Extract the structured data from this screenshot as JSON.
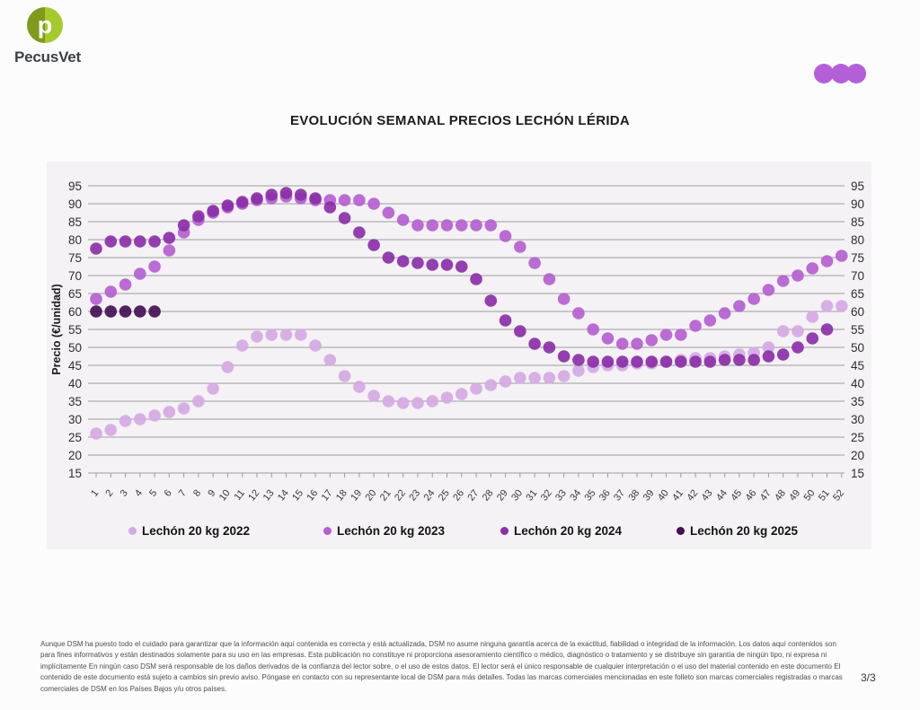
{
  "logo": {
    "brand": "PecusVet",
    "circle_dark_green": "#7f9a1d",
    "circle_light_green": "#a4ca2e"
  },
  "header": {
    "dots_color": "#b45fd8"
  },
  "title": "EVOLUCIÓN SEMANAL PRECIOS LECHÓN LÉRIDA",
  "chart_data": {
    "type": "scatter",
    "title": "EVOLUCIÓN SEMANAL PRECIOS LECHÓN LÉRIDA",
    "xlabel": "",
    "ylabel": "Precio (€/unidad)",
    "ylim": [
      15,
      95
    ],
    "y_ticks": [
      95,
      90,
      85,
      80,
      75,
      70,
      65,
      60,
      55,
      50,
      45,
      40,
      35,
      30,
      25,
      20,
      15
    ],
    "grid": true,
    "legend_position": "bottom",
    "x": [
      1,
      2,
      3,
      4,
      5,
      6,
      7,
      8,
      9,
      10,
      11,
      12,
      13,
      14,
      15,
      16,
      17,
      18,
      19,
      20,
      21,
      22,
      23,
      24,
      25,
      26,
      27,
      28,
      29,
      30,
      31,
      32,
      33,
      34,
      35,
      36,
      37,
      38,
      39,
      40,
      41,
      42,
      43,
      44,
      45,
      46,
      47,
      48,
      49,
      50,
      51,
      52
    ],
    "series": [
      {
        "name": "Lechón 20 kg 2022",
        "color": "#d4a9e3",
        "values": [
          26,
          27,
          29.5,
          30,
          31,
          32,
          33,
          35,
          38.5,
          44.5,
          50.5,
          53,
          53.5,
          53.5,
          53.5,
          50.5,
          46.5,
          42,
          39,
          36.5,
          35,
          34.5,
          34.5,
          35,
          36,
          37,
          38.5,
          39.5,
          40.5,
          41.5,
          41.5,
          41.5,
          42,
          43.5,
          44.5,
          45,
          45,
          45.5,
          45.5,
          46,
          46.5,
          47,
          47,
          47.5,
          48,
          48.5,
          50,
          54.5,
          54.5,
          58.5,
          61.5,
          61.5
        ]
      },
      {
        "name": "Lechón 20 kg 2023",
        "color": "#b55fd0",
        "values": [
          63.5,
          65.5,
          67.5,
          70.5,
          72.5,
          77,
          82,
          85.5,
          87.5,
          89,
          90,
          91,
          91.5,
          92,
          91.5,
          91,
          91,
          91,
          91,
          90,
          87.5,
          85.5,
          84,
          84,
          84,
          84,
          84,
          84,
          81,
          78,
          73.5,
          69,
          63.5,
          59.5,
          55,
          52.5,
          51,
          51,
          52,
          53.5,
          53.5,
          56,
          57.5,
          59.5,
          61.5,
          63.5,
          66,
          68.5,
          70,
          72,
          74,
          75.5
        ]
      },
      {
        "name": "Lechón 20 kg 2024",
        "color": "#8b2fa8",
        "values": [
          77.5,
          79.5,
          79.5,
          79.5,
          79.5,
          80.5,
          84,
          86.5,
          88,
          89.5,
          90.5,
          91.5,
          92.5,
          93,
          92.5,
          91.5,
          89,
          86,
          82,
          78.5,
          75,
          74,
          73.5,
          73,
          73,
          72.5,
          69,
          63,
          57.5,
          54.5,
          51,
          50,
          47.5,
          46.5,
          46,
          46,
          46,
          46,
          46,
          46,
          46,
          46,
          46,
          46.5,
          46.5,
          46.5,
          47.5,
          48,
          50,
          52.5,
          55,
          null
        ]
      },
      {
        "name": "Lechón 20 kg 2025",
        "color": "#431055",
        "values": [
          60,
          60,
          60,
          60,
          60,
          null,
          null,
          null,
          null,
          null,
          null,
          null,
          null,
          null,
          null,
          null,
          null,
          null,
          null,
          null,
          null,
          null,
          null,
          null,
          null,
          null,
          null,
          null,
          null,
          null,
          null,
          null,
          null,
          null,
          null,
          null,
          null,
          null,
          null,
          null,
          null,
          null,
          null,
          null,
          null,
          null,
          null,
          null,
          null,
          null,
          null,
          null
        ]
      }
    ]
  },
  "footer": {
    "disclaimer": "Aunque DSM ha puesto todo el cuidado para garantizar que la información aquí contenida es correcta y está actualizada, DSM no asume ninguna garantía acerca de la exactitud, fiabilidad o integridad de la información. Los datos aquí contenidos son para fines informativos y están destinados solamente para su uso en las empresas. Esta publicación no constituye ni proporciona asesoramiento científico o médico, diagnóstico o tratamiento y se distribuye sin garantía de ningún tipo, ni expresa ni implícitamente En ningún caso DSM será responsable de los daños derivados de la confianza del lector sobre, o el uso de estos datos. El lector será el único responsable de cualquier interpretación o el uso del material contenido en este documento El contenido de este documento está sujeto a cambios sin previo aviso. Póngase en contacto con su representante local de DSM para más detalles. Todas las marcas comerciales mencionadas en este folleto son marcas comerciales registradas o marcas comerciales de DSM en los Países Bajos y/u otros países.",
    "page": "3/3"
  }
}
